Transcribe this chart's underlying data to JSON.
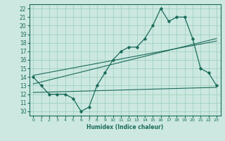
{
  "xlabel": "Humidex (Indice chaleur)",
  "ylabel": "",
  "bg_color": "#cce8e0",
  "grid_color": "#99ccbb",
  "line_color": "#1a6b5a",
  "xlim": [
    -0.5,
    23.5
  ],
  "ylim": [
    9.5,
    22.5
  ],
  "xticks": [
    0,
    1,
    2,
    3,
    4,
    5,
    6,
    7,
    8,
    9,
    10,
    11,
    12,
    13,
    14,
    15,
    16,
    17,
    18,
    19,
    20,
    21,
    22,
    23
  ],
  "yticks": [
    10,
    11,
    12,
    13,
    14,
    15,
    16,
    17,
    18,
    19,
    20,
    21,
    22
  ],
  "main_x": [
    0,
    1,
    2,
    3,
    4,
    5,
    6,
    7,
    8,
    9,
    10,
    11,
    12,
    13,
    14,
    15,
    16,
    17,
    18,
    19,
    20,
    21,
    22,
    23
  ],
  "main_y": [
    14,
    13,
    12,
    12,
    12,
    11.5,
    10,
    10.5,
    13,
    14.5,
    16,
    17,
    17.5,
    17.5,
    18.5,
    20,
    22,
    20.5,
    21,
    21,
    18.5,
    15,
    14.5,
    13
  ],
  "trend1_x": [
    0,
    23
  ],
  "trend1_y": [
    13.2,
    18.5
  ],
  "trend2_x": [
    0,
    23
  ],
  "trend2_y": [
    12.2,
    12.8
  ],
  "trend3_x": [
    0,
    23
  ],
  "trend3_y": [
    14.2,
    18.2
  ]
}
